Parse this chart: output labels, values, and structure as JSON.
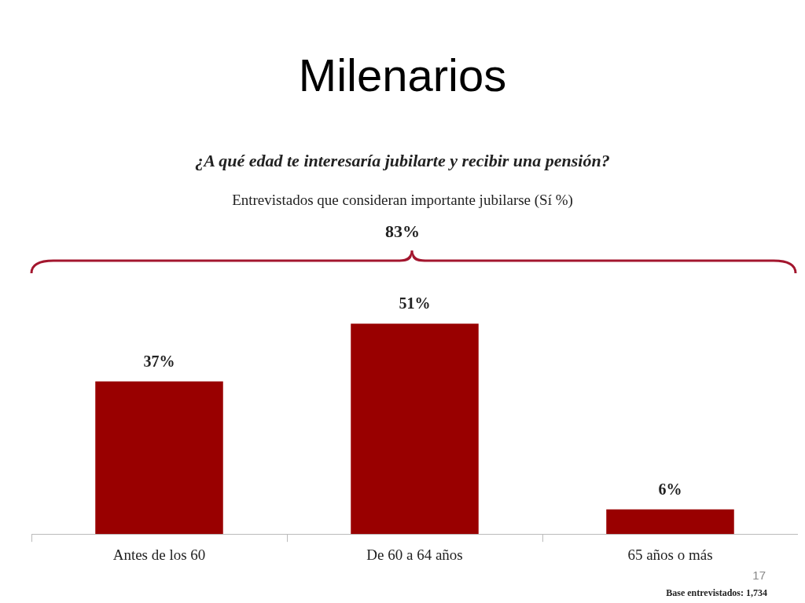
{
  "chart_data": {
    "type": "bar",
    "title": "Milenarios",
    "subtitle": "¿A qué edad te interesaría jubilarte y recibir una pensión?",
    "categories": [
      "Antes de los 60",
      "De 60 a 64 años",
      "65 años o más"
    ],
    "values": [
      37,
      51,
      6
    ],
    "value_labels": [
      "37%",
      "51%",
      "6%"
    ],
    "color": "#990000",
    "annotations": [
      "Entrevistados que consideran importante jubilarse (Sí %)",
      "83%",
      "17",
      "Base entrevistados: 1,734"
    ],
    "legend": false
  }
}
